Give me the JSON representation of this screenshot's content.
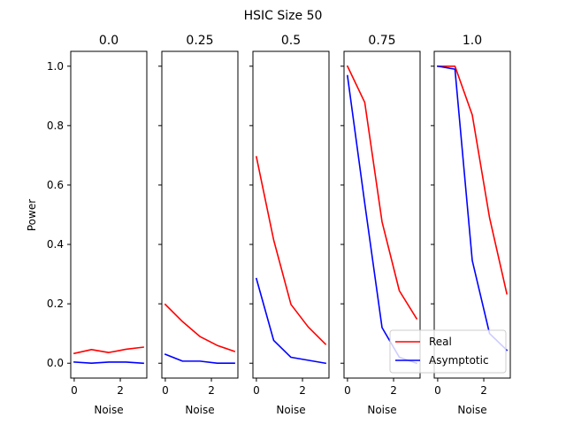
{
  "chart_data": {
    "type": "line",
    "suptitle": "HSIC Size 50",
    "ylabel": "Power",
    "xlabel": "Noise",
    "xlim": [
      -0.15,
      3.15
    ],
    "ylim": [
      -0.05,
      1.05
    ],
    "xticks": [
      0,
      2
    ],
    "yticks": [
      0.0,
      0.2,
      0.4,
      0.6,
      0.8,
      1.0
    ],
    "ytick_labels": [
      "0.0",
      "0.2",
      "0.4",
      "0.6",
      "0.8",
      "1.0"
    ],
    "x": [
      0,
      0.75,
      1.5,
      2.25,
      3.0
    ],
    "colors": {
      "Real": "#ff0000",
      "Asymptotic": "#0000ff"
    },
    "legend": {
      "entries": [
        "Real",
        "Asymptotic"
      ],
      "placement": "lower right"
    },
    "panels": [
      {
        "title": "0.0",
        "series": [
          {
            "name": "Real",
            "values": [
              0.033,
              0.046,
              0.036,
              0.047,
              0.054
            ]
          },
          {
            "name": "Asymptotic",
            "values": [
              0.004,
              0.0,
              0.004,
              0.004,
              0.0
            ]
          }
        ]
      },
      {
        "title": "0.25",
        "series": [
          {
            "name": "Real",
            "values": [
              0.198,
              0.14,
              0.09,
              0.06,
              0.04
            ]
          },
          {
            "name": "Asymptotic",
            "values": [
              0.03,
              0.007,
              0.007,
              0.0,
              0.0
            ]
          }
        ]
      },
      {
        "title": "0.5",
        "series": [
          {
            "name": "Real",
            "values": [
              0.695,
              0.415,
              0.198,
              0.122,
              0.064
            ]
          },
          {
            "name": "Asymptotic",
            "values": [
              0.285,
              0.077,
              0.02,
              0.01,
              0.0
            ]
          }
        ]
      },
      {
        "title": "0.75",
        "series": [
          {
            "name": "Real",
            "values": [
              1.0,
              0.878,
              0.476,
              0.244,
              0.15
            ]
          },
          {
            "name": "Asymptotic",
            "values": [
              0.968,
              0.538,
              0.12,
              0.02,
              0.0
            ]
          }
        ]
      },
      {
        "title": "1.0",
        "series": [
          {
            "name": "Real",
            "values": [
              1.0,
              1.0,
              0.836,
              0.49,
              0.234
            ]
          },
          {
            "name": "Asymptotic",
            "values": [
              1.0,
              0.99,
              0.346,
              0.1,
              0.044
            ]
          }
        ]
      }
    ]
  }
}
